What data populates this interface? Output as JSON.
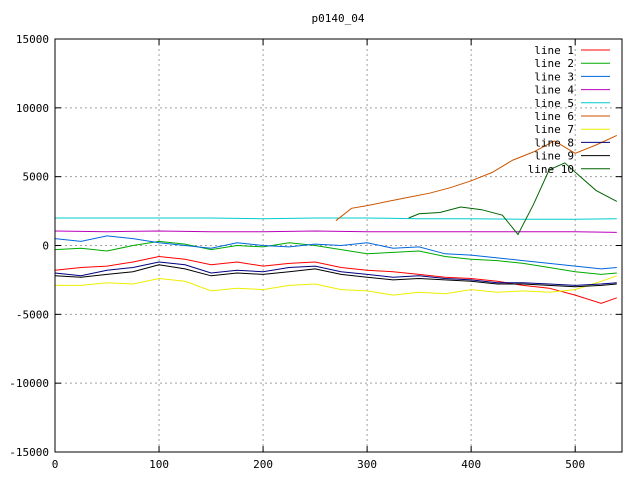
{
  "chart_data": {
    "type": "line",
    "title": "p0140_04",
    "xlabel": "",
    "ylabel": "",
    "xlim": [
      0,
      545
    ],
    "ylim": [
      -15000,
      15000
    ],
    "x_ticks": [
      0,
      100,
      200,
      300,
      400,
      500
    ],
    "y_ticks": [
      -15000,
      -10000,
      -5000,
      0,
      5000,
      10000,
      15000
    ],
    "x_tick_labels": [
      "0",
      "100",
      "200",
      "300",
      "400",
      "500"
    ],
    "y_tick_labels": [
      "-15000",
      "-10000",
      "-5000",
      "0",
      "5000",
      "10000",
      "15000"
    ],
    "grid": true,
    "legend_position": "top-right",
    "series": [
      {
        "name": "line 1",
        "color": "#ff0000",
        "x": [
          0,
          25,
          50,
          75,
          100,
          125,
          150,
          175,
          200,
          225,
          250,
          275,
          300,
          325,
          350,
          375,
          400,
          425,
          450,
          475,
          500,
          525,
          540
        ],
        "values": [
          -1800,
          -1600,
          -1500,
          -1200,
          -800,
          -1000,
          -1400,
          -1200,
          -1500,
          -1300,
          -1200,
          -1600,
          -1800,
          -1900,
          -2100,
          -2300,
          -2400,
          -2600,
          -2900,
          -3100,
          -3600,
          -4200,
          -3800
        ]
      },
      {
        "name": "line 2",
        "color": "#00aa00",
        "x": [
          0,
          25,
          50,
          75,
          100,
          125,
          150,
          175,
          200,
          225,
          250,
          275,
          300,
          325,
          350,
          375,
          400,
          425,
          450,
          475,
          500,
          525,
          540
        ],
        "values": [
          -300,
          -200,
          -400,
          0,
          300,
          100,
          -300,
          0,
          -100,
          200,
          0,
          -300,
          -600,
          -500,
          -400,
          -800,
          -1000,
          -1100,
          -1300,
          -1600,
          -1900,
          -2100,
          -2000
        ]
      },
      {
        "name": "line 3",
        "color": "#0066dd",
        "x": [
          0,
          25,
          50,
          75,
          100,
          125,
          150,
          175,
          200,
          225,
          250,
          275,
          300,
          325,
          350,
          375,
          400,
          425,
          450,
          475,
          500,
          525,
          540
        ],
        "values": [
          500,
          300,
          700,
          500,
          200,
          0,
          -200,
          200,
          0,
          -100,
          100,
          0,
          200,
          -200,
          -100,
          -600,
          -700,
          -900,
          -1100,
          -1300,
          -1500,
          -1700,
          -1600
        ]
      },
      {
        "name": "line 4",
        "color": "#bb00bb",
        "x": [
          0,
          50,
          100,
          150,
          200,
          250,
          300,
          350,
          400,
          450,
          500,
          540
        ],
        "values": [
          1050,
          1000,
          1050,
          1000,
          1000,
          1050,
          1000,
          1000,
          1000,
          1000,
          1000,
          950
        ]
      },
      {
        "name": "line 5",
        "color": "#00cccc",
        "x": [
          0,
          50,
          100,
          150,
          200,
          250,
          300,
          350,
          400,
          450,
          500,
          540
        ],
        "values": [
          2000,
          2000,
          2000,
          2000,
          1950,
          2000,
          2000,
          1950,
          1950,
          1900,
          1900,
          1950
        ]
      },
      {
        "name": "line 6",
        "color": "#cc5500",
        "x": [
          270,
          285,
          300,
          320,
          340,
          360,
          380,
          400,
          420,
          440,
          460,
          480,
          500,
          520,
          540
        ],
        "values": [
          1800,
          2700,
          2900,
          3200,
          3500,
          3800,
          4200,
          4700,
          5300,
          6200,
          6800,
          7600,
          6700,
          7300,
          8000
        ]
      },
      {
        "name": "line 7",
        "color": "#eeee00",
        "x": [
          0,
          25,
          50,
          75,
          100,
          125,
          150,
          175,
          200,
          225,
          250,
          275,
          300,
          325,
          350,
          375,
          400,
          425,
          450,
          475,
          500,
          525,
          540
        ],
        "values": [
          -2900,
          -2900,
          -2700,
          -2800,
          -2400,
          -2600,
          -3300,
          -3100,
          -3200,
          -2900,
          -2800,
          -3200,
          -3300,
          -3600,
          -3400,
          -3500,
          -3200,
          -3400,
          -3300,
          -3400,
          -3200,
          -2600,
          -2200
        ]
      },
      {
        "name": "line 8",
        "color": "#000080",
        "x": [
          0,
          25,
          50,
          75,
          100,
          125,
          150,
          175,
          200,
          225,
          250,
          275,
          300,
          325,
          350,
          375,
          400,
          425,
          450,
          475,
          500,
          525,
          540
        ],
        "values": [
          -2000,
          -2200,
          -1800,
          -1600,
          -1200,
          -1400,
          -2000,
          -1800,
          -1900,
          -1600,
          -1500,
          -1900,
          -2100,
          -2300,
          -2200,
          -2400,
          -2500,
          -2700,
          -2700,
          -2800,
          -2900,
          -2800,
          -2700
        ]
      },
      {
        "name": "line 9",
        "color": "#000000",
        "x": [
          0,
          25,
          50,
          75,
          100,
          125,
          150,
          175,
          200,
          225,
          250,
          275,
          300,
          325,
          350,
          375,
          400,
          425,
          450,
          475,
          500,
          525,
          540
        ],
        "values": [
          -2200,
          -2300,
          -2100,
          -1900,
          -1400,
          -1700,
          -2200,
          -2000,
          -2100,
          -1900,
          -1700,
          -2100,
          -2300,
          -2500,
          -2400,
          -2500,
          -2600,
          -2800,
          -2800,
          -2900,
          -3000,
          -2900,
          -2800
        ]
      },
      {
        "name": "line 10",
        "color": "#006400",
        "x": [
          340,
          350,
          370,
          390,
          410,
          430,
          445,
          460,
          475,
          490,
          505,
          520,
          540
        ],
        "values": [
          2000,
          2300,
          2400,
          2800,
          2600,
          2200,
          800,
          3000,
          5500,
          6000,
          5000,
          4000,
          3200
        ]
      }
    ]
  }
}
